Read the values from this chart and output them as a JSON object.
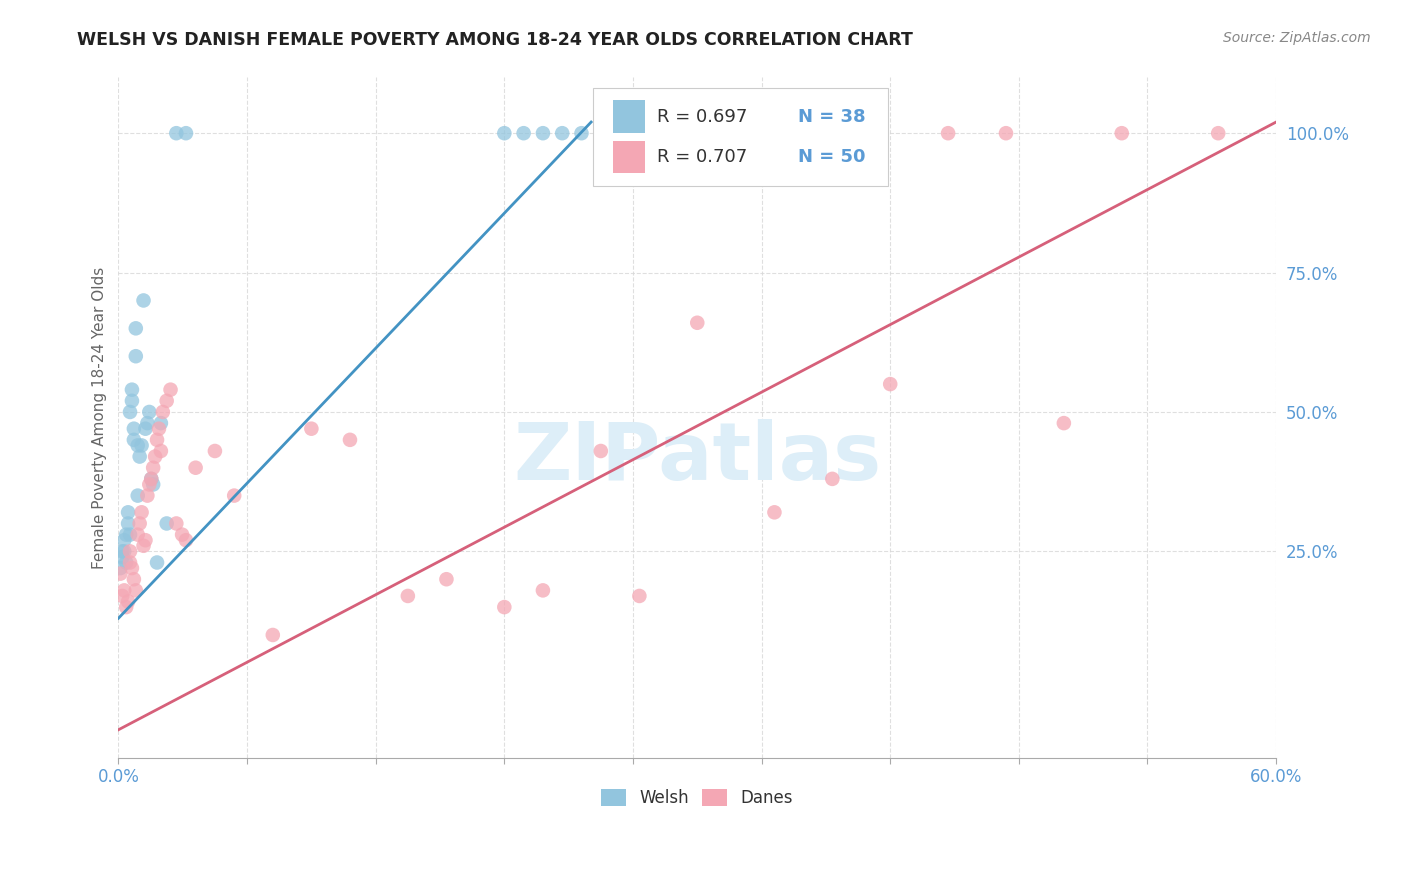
{
  "title": "WELSH VS DANISH FEMALE POVERTY AMONG 18-24 YEAR OLDS CORRELATION CHART",
  "source": "Source: ZipAtlas.com",
  "ylabel": "Female Poverty Among 18-24 Year Olds",
  "welsh_color": "#92c5de",
  "danes_color": "#f4a7b4",
  "welsh_line_color": "#4393c3",
  "danes_line_color": "#d6607a",
  "watermark_color": "#ddeeff",
  "background_color": "#ffffff",
  "welsh_x": [
    0.001,
    0.002,
    0.002,
    0.003,
    0.003,
    0.004,
    0.004,
    0.005,
    0.005,
    0.006,
    0.006,
    0.007,
    0.007,
    0.008,
    0.008,
    0.009,
    0.009,
    0.01,
    0.01,
    0.011,
    0.012,
    0.013,
    0.014,
    0.015,
    0.016,
    0.017,
    0.018,
    0.02,
    0.022,
    0.025,
    0.03,
    0.035,
    0.2,
    0.21,
    0.22,
    0.23,
    0.24,
    0.25
  ],
  "welsh_y": [
    0.22,
    0.24,
    0.25,
    0.27,
    0.25,
    0.23,
    0.28,
    0.3,
    0.32,
    0.28,
    0.5,
    0.52,
    0.54,
    0.45,
    0.47,
    0.6,
    0.65,
    0.44,
    0.35,
    0.42,
    0.44,
    0.7,
    0.47,
    0.48,
    0.5,
    0.38,
    0.37,
    0.23,
    0.48,
    0.3,
    1.0,
    1.0,
    1.0,
    1.0,
    1.0,
    1.0,
    1.0,
    1.0
  ],
  "danes_x": [
    0.001,
    0.002,
    0.003,
    0.004,
    0.005,
    0.006,
    0.006,
    0.007,
    0.008,
    0.009,
    0.01,
    0.011,
    0.012,
    0.013,
    0.014,
    0.015,
    0.016,
    0.017,
    0.018,
    0.019,
    0.02,
    0.021,
    0.022,
    0.023,
    0.025,
    0.027,
    0.03,
    0.033,
    0.035,
    0.04,
    0.05,
    0.06,
    0.08,
    0.1,
    0.12,
    0.15,
    0.17,
    0.2,
    0.22,
    0.25,
    0.27,
    0.3,
    0.34,
    0.37,
    0.4,
    0.43,
    0.46,
    0.49,
    0.52,
    0.57
  ],
  "danes_y": [
    0.21,
    0.17,
    0.18,
    0.15,
    0.16,
    0.23,
    0.25,
    0.22,
    0.2,
    0.18,
    0.28,
    0.3,
    0.32,
    0.26,
    0.27,
    0.35,
    0.37,
    0.38,
    0.4,
    0.42,
    0.45,
    0.47,
    0.43,
    0.5,
    0.52,
    0.54,
    0.3,
    0.28,
    0.27,
    0.4,
    0.43,
    0.35,
    0.1,
    0.47,
    0.45,
    0.17,
    0.2,
    0.15,
    0.18,
    0.43,
    0.17,
    0.66,
    0.32,
    0.38,
    0.55,
    1.0,
    1.0,
    0.48,
    1.0,
    1.0
  ],
  "welsh_line": {
    "x0": 0.0,
    "y0": 0.13,
    "x1": 0.245,
    "y1": 1.02
  },
  "danes_line": {
    "x0": 0.0,
    "y0": -0.07,
    "x1": 0.6,
    "y1": 1.02
  },
  "xlim": [
    0.0,
    0.6
  ],
  "ylim": [
    -0.12,
    1.1
  ],
  "yticks": [
    0.25,
    0.5,
    0.75,
    1.0
  ],
  "ytick_labels": [
    "25.0%",
    "50.0%",
    "75.0%",
    "100.0%"
  ],
  "xtick_left_label": "0.0%",
  "xtick_right_label": "60.0%",
  "n_xticks": 10
}
